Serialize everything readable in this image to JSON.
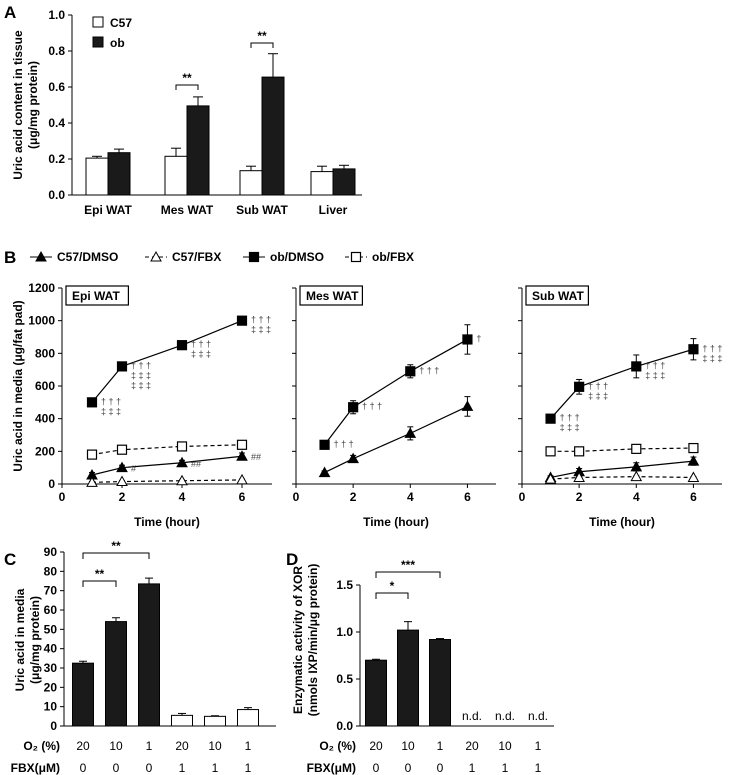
{
  "chart_data": [
    {
      "panel": "A",
      "type": "bar",
      "ylabel": "Uric acid content in tissue (μg/mg protein)",
      "ylabel_lines": [
        "Uric acid content in tissue",
        "(μg/mg protein)"
      ],
      "ylim": [
        0,
        1.0
      ],
      "yticks": [
        "0.0",
        "0.2",
        "0.4",
        "0.6",
        "0.8",
        "1.0"
      ],
      "categories": [
        "Epi WAT",
        "Mes WAT",
        "Sub WAT",
        "Liver"
      ],
      "series": [
        {
          "name": "C57",
          "fill": "#ffffff",
          "values": [
            0.205,
            0.215,
            0.135,
            0.13
          ],
          "errors": [
            0.01,
            0.045,
            0.025,
            0.03
          ]
        },
        {
          "name": "ob",
          "fill": "#1a1a1a",
          "values": [
            0.235,
            0.495,
            0.655,
            0.145
          ],
          "errors": [
            0.02,
            0.05,
            0.13,
            0.02
          ]
        }
      ],
      "significance": [
        {
          "category": "Mes WAT",
          "label": "**"
        },
        {
          "category": "Sub WAT",
          "label": "**"
        }
      ]
    },
    {
      "panel": "B",
      "type": "line",
      "ylabel": "Uric acid in media (μg/fat pad)",
      "xlabel": "Time (hour)",
      "ylim": [
        0,
        1200
      ],
      "xlim": [
        0,
        7
      ],
      "yticks": [
        "0",
        "200",
        "400",
        "600",
        "800",
        "1000",
        "1200"
      ],
      "xticks": [
        "0",
        "2",
        "4",
        "6"
      ],
      "legend": [
        "C57/DMSO",
        "C57/FBX",
        "ob/DMSO",
        "ob/FBX"
      ],
      "subplots": [
        {
          "title": "Epi WAT",
          "x": [
            1,
            2,
            4,
            6
          ],
          "series": [
            {
              "name": "C57/DMSO",
              "values": [
                55,
                100,
                130,
                170
              ],
              "errors": [
                15,
                15,
                15,
                20
              ]
            },
            {
              "name": "C57/FBX",
              "values": [
                10,
                15,
                20,
                25
              ],
              "errors": [
                5,
                5,
                5,
                5
              ]
            },
            {
              "name": "ob/DMSO",
              "values": [
                500,
                720,
                850,
                1000
              ],
              "errors": [
                25,
                20,
                25,
                25
              ]
            },
            {
              "name": "ob/FBX",
              "values": [
                180,
                210,
                230,
                240
              ],
              "errors": [
                10,
                10,
                10,
                10
              ]
            }
          ],
          "annotations": [
            {
              "x": 1,
              "lines": [
                "† † †",
                "‡ ‡ ‡"
              ]
            },
            {
              "x": 2,
              "lines": [
                "† † †",
                "‡ ‡ ‡",
                "‡ ‡ ‡"
              ]
            },
            {
              "x": 4,
              "lines": [
                "† † †",
                "‡ ‡ ‡"
              ]
            },
            {
              "x": 6,
              "lines": [
                "† † †",
                "‡ ‡ ‡"
              ]
            },
            {
              "x": 2,
              "lines": [
                "#"
              ]
            },
            {
              "x": 4,
              "lines": [
                "##"
              ]
            },
            {
              "x": 6,
              "lines": [
                "##"
              ]
            }
          ]
        },
        {
          "title": "Mes WAT",
          "x": [
            1,
            2,
            4,
            6
          ],
          "series": [
            {
              "name": "C57/DMSO",
              "values": [
                70,
                155,
                310,
                475
              ],
              "errors": [
                10,
                20,
                40,
                60
              ]
            },
            {
              "name": "ob/DMSO",
              "values": [
                240,
                470,
                690,
                885
              ],
              "errors": [
                10,
                40,
                40,
                90
              ]
            }
          ],
          "annotations": [
            {
              "x": 1,
              "lines": [
                "† † †"
              ]
            },
            {
              "x": 2,
              "lines": [
                "† † †"
              ]
            },
            {
              "x": 4,
              "lines": [
                "† † †"
              ]
            },
            {
              "x": 6,
              "lines": [
                "†"
              ]
            }
          ]
        },
        {
          "title": "Sub WAT",
          "x": [
            1,
            2,
            4,
            6
          ],
          "series": [
            {
              "name": "C57/DMSO",
              "values": [
                40,
                75,
                105,
                140
              ],
              "errors": [
                10,
                20,
                25,
                25
              ]
            },
            {
              "name": "C57/FBX",
              "values": [
                30,
                40,
                45,
                40
              ],
              "errors": [
                5,
                5,
                5,
                5
              ]
            },
            {
              "name": "ob/DMSO",
              "values": [
                400,
                595,
                720,
                825
              ],
              "errors": [
                10,
                45,
                70,
                65
              ]
            },
            {
              "name": "ob/FBX",
              "values": [
                200,
                200,
                215,
                220
              ],
              "errors": [
                8,
                8,
                8,
                8
              ]
            }
          ],
          "annotations": [
            {
              "x": 1,
              "lines": [
                "† † †",
                "‡ ‡ ‡"
              ]
            },
            {
              "x": 2,
              "lines": [
                "† † †",
                "‡ ‡ ‡"
              ]
            },
            {
              "x": 4,
              "lines": [
                "† † †",
                "‡ ‡ ‡"
              ]
            },
            {
              "x": 6,
              "lines": [
                "† † †",
                "‡ ‡ ‡"
              ]
            }
          ]
        }
      ]
    },
    {
      "panel": "C",
      "type": "bar",
      "ylabel": "Uric acid in media (μg/mg protein)",
      "ylabel_lines": [
        "Uric acid in media",
        "(μg/mg protein)"
      ],
      "ylim": [
        0,
        90
      ],
      "yticks": [
        "0",
        "10",
        "20",
        "30",
        "40",
        "50",
        "60",
        "70",
        "80",
        "90"
      ],
      "o2_label": "O₂ (%)",
      "o2": [
        "20",
        "10",
        "1",
        "20",
        "10",
        "1"
      ],
      "fbx_label": "FBX(μM)",
      "fbx": [
        "0",
        "0",
        "0",
        "1",
        "1",
        "1"
      ],
      "values": [
        32.5,
        54,
        73.5,
        5.5,
        5,
        8.5
      ],
      "errors": [
        1,
        2,
        3,
        1,
        0.3,
        1
      ],
      "fills": [
        "#1a1a1a",
        "#1a1a1a",
        "#1a1a1a",
        "#ffffff",
        "#ffffff",
        "#ffffff"
      ],
      "significance": [
        {
          "from": 0,
          "to": 1,
          "label": "**"
        },
        {
          "from": 0,
          "to": 2,
          "label": "**"
        }
      ]
    },
    {
      "panel": "D",
      "type": "bar",
      "ylabel": "Enzymatic activity of XOR (nmols IXP/min/μg protein)",
      "ylabel_lines": [
        "Enzymatic activity of XOR",
        "(nmols IXP/min/μg protein)"
      ],
      "ylim": [
        0,
        1.5
      ],
      "yticks": [
        "0.0",
        "0.5",
        "1.0",
        "1.5"
      ],
      "o2_label": "O₂ (%)",
      "o2": [
        "20",
        "10",
        "1",
        "20",
        "10",
        "1"
      ],
      "fbx_label": "FBX(μM)",
      "fbx": [
        "0",
        "0",
        "0",
        "1",
        "1",
        "1"
      ],
      "values": [
        0.7,
        1.02,
        0.92,
        null,
        null,
        null
      ],
      "errors": [
        0.01,
        0.09,
        0.01,
        null,
        null,
        null
      ],
      "labels": [
        "",
        "",
        "",
        "n.d.",
        "n.d.",
        "n.d."
      ],
      "significance": [
        {
          "from": 0,
          "to": 1,
          "label": "*"
        },
        {
          "from": 0,
          "to": 2,
          "label": "***"
        }
      ]
    }
  ]
}
